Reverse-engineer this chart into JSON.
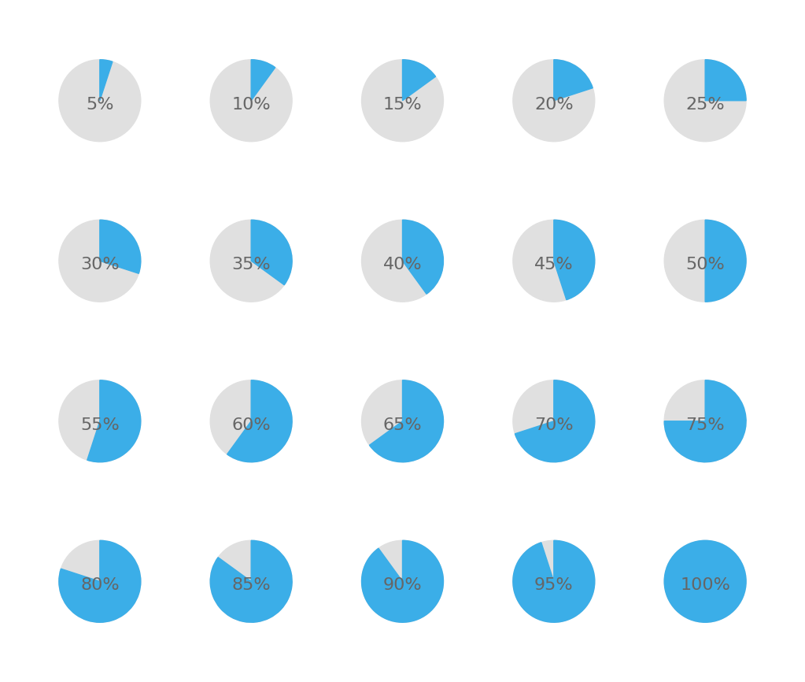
{
  "percentages": [
    5,
    10,
    15,
    20,
    25,
    30,
    35,
    40,
    45,
    50,
    55,
    60,
    65,
    70,
    75,
    80,
    85,
    90,
    95,
    100
  ],
  "cols": 5,
  "rows": 4,
  "blue_color": "#3BAEE8",
  "gray_color": "#E0E0E0",
  "text_color": "#666666",
  "background_color": "#FFFFFF",
  "font_size": 16,
  "figsize": [
    10.23,
    8.66
  ],
  "dpi": 100
}
